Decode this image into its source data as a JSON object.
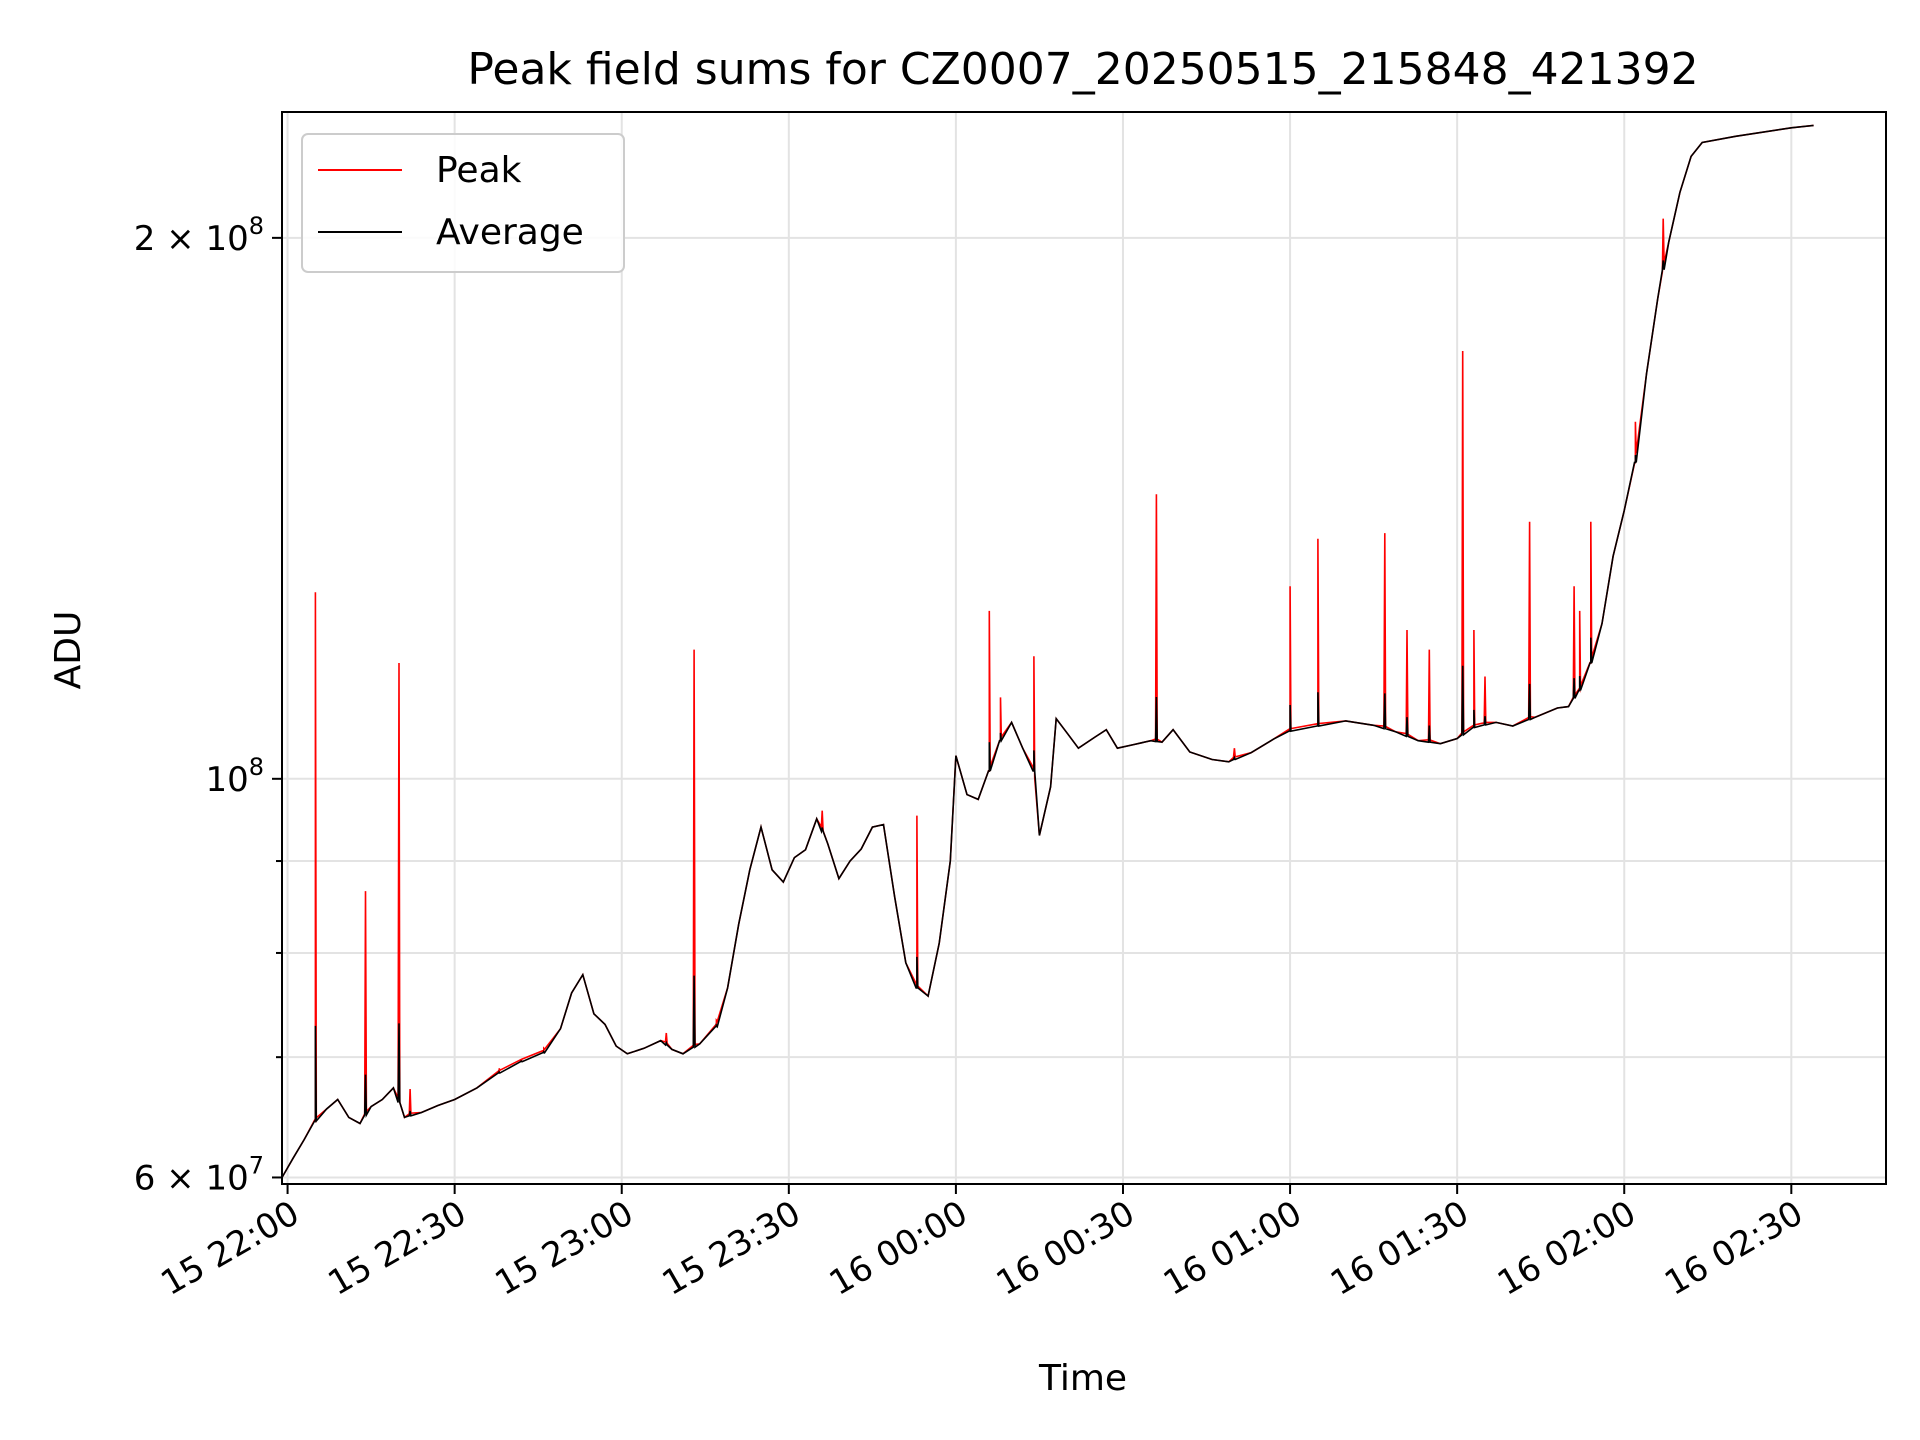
{
  "chart_data": {
    "type": "line",
    "title": "Peak field sums for CZ0007_20250515_215848_421392",
    "xlabel": "Time",
    "ylabel": "ADU",
    "x_axis": {
      "type": "time",
      "range": [
        "15 21:59",
        "16 02:47"
      ]
    },
    "y_axis": {
      "scale": "log",
      "range": [
        59500000,
        235000000
      ]
    },
    "x_ticks": [
      "15 22:00",
      "15 22:30",
      "15 23:00",
      "15 23:30",
      "16 00:00",
      "16 00:30",
      "16 01:00",
      "16 01:30",
      "16 02:00",
      "16 02:30"
    ],
    "y_ticks": [
      {
        "value": 60000000,
        "label": "6 × 10⁷",
        "mantissa": "6",
        "exp": "7"
      },
      {
        "value": 100000000,
        "label": "10⁸",
        "mantissa": "",
        "exp": "8"
      },
      {
        "value": 200000000,
        "label": "2 × 10⁸",
        "mantissa": "2",
        "exp": "8"
      }
    ],
    "y_minor_ticks": [
      70000000,
      80000000,
      90000000
    ],
    "grid": true,
    "legend": {
      "placement": "upper-left",
      "entries": [
        {
          "label": "Peak",
          "color": "#ff0000"
        },
        {
          "label": "Average",
          "color": "#000000"
        }
      ]
    },
    "series": [
      {
        "name": "Average",
        "color": "#000000",
        "points": [
          [
            "15 21:59",
            60000000
          ],
          [
            "15 22:01",
            61500000
          ],
          [
            "15 22:03",
            63000000
          ],
          [
            "15 22:05",
            64500000
          ],
          [
            "15 22:07",
            65500000
          ],
          [
            "15 22:09",
            66300000
          ],
          [
            "15 22:11",
            64800000
          ],
          [
            "15 22:13",
            64300000
          ],
          [
            "15 22:15",
            65700000
          ],
          [
            "15 22:17",
            66300000
          ],
          [
            "15 22:19",
            67300000
          ],
          [
            "15 22:21",
            64800000
          ],
          [
            "15 22:24",
            65200000
          ],
          [
            "15 22:27",
            65800000
          ],
          [
            "15 22:30",
            66300000
          ],
          [
            "15 22:34",
            67300000
          ],
          [
            "15 22:38",
            68600000
          ],
          [
            "15 22:42",
            69600000
          ],
          [
            "15 22:46",
            70400000
          ],
          [
            "15 22:49",
            72600000
          ],
          [
            "15 22:51",
            76000000
          ],
          [
            "15 22:53",
            77800000
          ],
          [
            "15 22:55",
            74000000
          ],
          [
            "15 22:57",
            73000000
          ],
          [
            "15 22:59",
            71000000
          ],
          [
            "15 23:01",
            70300000
          ],
          [
            "15 23:04",
            70800000
          ],
          [
            "15 23:07",
            71500000
          ],
          [
            "15 23:09",
            70700000
          ],
          [
            "15 23:11",
            70300000
          ],
          [
            "15 23:14",
            71200000
          ],
          [
            "15 23:17",
            72800000
          ],
          [
            "15 23:19",
            76500000
          ],
          [
            "15 23:21",
            83000000
          ],
          [
            "15 23:23",
            89000000
          ],
          [
            "15 23:25",
            94000000
          ],
          [
            "15 23:27",
            89000000
          ],
          [
            "15 23:29",
            87600000
          ],
          [
            "15 23:31",
            90400000
          ],
          [
            "15 23:33",
            91300000
          ],
          [
            "15 23:35",
            95000000
          ],
          [
            "15 23:37",
            92000000
          ],
          [
            "15 23:39",
            88000000
          ],
          [
            "15 23:41",
            90000000
          ],
          [
            "15 23:43",
            91400000
          ],
          [
            "15 23:45",
            94000000
          ],
          [
            "15 23:47",
            94300000
          ],
          [
            "15 23:49",
            86000000
          ],
          [
            "15 23:51",
            79000000
          ],
          [
            "15 23:53",
            76500000
          ],
          [
            "15 23:55",
            75700000
          ],
          [
            "15 23:57",
            81000000
          ],
          [
            "15 23:59",
            90000000
          ],
          [
            "16 00:00",
            103000000
          ],
          [
            "16 00:02",
            98000000
          ],
          [
            "16 00:04",
            97400000
          ],
          [
            "16 00:06",
            101000000
          ],
          [
            "16 00:08",
            105000000
          ],
          [
            "16 00:10",
            107500000
          ],
          [
            "16 00:12",
            104000000
          ],
          [
            "16 00:14",
            101000000
          ],
          [
            "16 00:15",
            93000000
          ],
          [
            "16 00:17",
            99000000
          ],
          [
            "16 00:18",
            108000000
          ],
          [
            "16 00:20",
            106000000
          ],
          [
            "16 00:22",
            104000000
          ],
          [
            "16 00:25",
            105500000
          ],
          [
            "16 00:27",
            106500000
          ],
          [
            "16 00:29",
            104000000
          ],
          [
            "16 00:32",
            104500000
          ],
          [
            "16 00:35",
            105000000
          ],
          [
            "16 00:37",
            104800000
          ],
          [
            "16 00:39",
            106500000
          ],
          [
            "16 00:42",
            103500000
          ],
          [
            "16 00:46",
            102500000
          ],
          [
            "16 00:49",
            102200000
          ],
          [
            "16 00:53",
            103400000
          ],
          [
            "16 00:57",
            105200000
          ],
          [
            "16 01:00",
            106300000
          ],
          [
            "16 01:05",
            107000000
          ],
          [
            "16 01:10",
            107700000
          ],
          [
            "16 01:15",
            107100000
          ],
          [
            "16 01:19",
            106200000
          ],
          [
            "16 01:23",
            105000000
          ],
          [
            "16 01:27",
            104600000
          ],
          [
            "16 01:30",
            105300000
          ],
          [
            "16 01:33",
            106800000
          ],
          [
            "16 01:37",
            107500000
          ],
          [
            "16 01:40",
            107000000
          ],
          [
            "16 01:44",
            108200000
          ],
          [
            "16 01:48",
            109500000
          ],
          [
            "16 01:50",
            109700000
          ],
          [
            "16 01:52",
            112000000
          ],
          [
            "16 01:54",
            116000000
          ],
          [
            "16 01:56",
            122000000
          ],
          [
            "16 01:58",
            133000000
          ],
          [
            "16 02:00",
            141000000
          ],
          [
            "16 02:02",
            150000000
          ],
          [
            "16 02:04",
            168000000
          ],
          [
            "16 02:06",
            185000000
          ],
          [
            "16 02:08",
            199000000
          ],
          [
            "16 02:10",
            212000000
          ],
          [
            "16 02:12",
            222000000
          ],
          [
            "16 02:14",
            226000000
          ],
          [
            "16 02:20",
            227800000
          ],
          [
            "16 02:30",
            230300000
          ],
          [
            "16 02:34",
            231000000
          ]
        ]
      },
      {
        "name": "Peak",
        "color": "#ff0000",
        "spikes": [
          [
            "15 22:05",
            127000000
          ],
          [
            "15 22:14",
            86600000
          ],
          [
            "15 22:20",
            116000000
          ],
          [
            "15 22:22",
            67200000
          ],
          [
            "15 22:38",
            69000000
          ],
          [
            "15 22:42",
            69800000
          ],
          [
            "15 22:46",
            70800000
          ],
          [
            "15 23:08",
            72200000
          ],
          [
            "15 23:13",
            118000000
          ],
          [
            "15 23:17",
            73400000
          ],
          [
            "15 23:36",
            96000000
          ],
          [
            "15 23:53",
            95400000
          ],
          [
            "16 00:06",
            124000000
          ],
          [
            "16 00:08",
            111000000
          ],
          [
            "16 00:14",
            117000000
          ],
          [
            "16 00:36",
            144000000
          ],
          [
            "16 00:50",
            104000000
          ],
          [
            "16 01:00",
            128000000
          ],
          [
            "16 01:05",
            136000000
          ],
          [
            "16 01:17",
            137000000
          ],
          [
            "16 01:21",
            121000000
          ],
          [
            "16 01:25",
            118000000
          ],
          [
            "16 01:31",
            173000000
          ],
          [
            "16 01:33",
            121000000
          ],
          [
            "16 01:35",
            114000000
          ],
          [
            "16 01:43",
            139000000
          ],
          [
            "16 01:51",
            128000000
          ],
          [
            "16 01:52",
            124000000
          ],
          [
            "16 01:54",
            139000000
          ],
          [
            "16 02:02",
            158000000
          ],
          [
            "16 02:07",
            205000000
          ]
        ]
      }
    ]
  }
}
